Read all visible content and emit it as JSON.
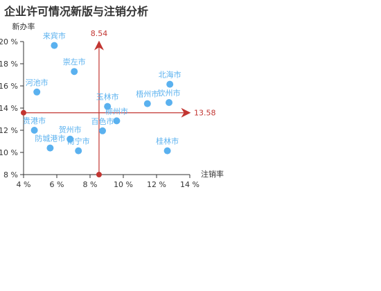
{
  "chart_data": {
    "type": "scatter",
    "title": "企业许可情况新版与注销分析",
    "xlabel": "注销率",
    "ylabel": "新办率",
    "xlim": [
      4,
      14
    ],
    "ylim": [
      8,
      20
    ],
    "x_ticks": [
      4,
      6,
      8,
      10,
      12,
      14
    ],
    "y_ticks": [
      8,
      10,
      12,
      14,
      16,
      18,
      20
    ],
    "x_tick_labels": [
      "4 %",
      "6 %",
      "8 %",
      "10 %",
      "12 %",
      "14 %"
    ],
    "y_tick_labels": [
      "8 %",
      "10 %",
      "12 %",
      "14 %",
      "16 %",
      "18 %",
      "20 %"
    ],
    "grid": false,
    "reference_lines": {
      "x": 8.54,
      "x_label": "8.54",
      "y": 13.58,
      "y_label": "13.58",
      "color": "#c23531"
    },
    "point_color": "#5ab1ef",
    "points": [
      {
        "name": "来宾市",
        "x": 5.85,
        "y": 19.65
      },
      {
        "name": "崇左市",
        "x": 7.05,
        "y": 17.3
      },
      {
        "name": "河池市",
        "x": 4.8,
        "y": 15.45
      },
      {
        "name": "北海市",
        "x": 12.8,
        "y": 16.15
      },
      {
        "name": "玉林市",
        "x": 9.05,
        "y": 14.15
      },
      {
        "name": "梧州市",
        "x": 11.45,
        "y": 14.4
      },
      {
        "name": "钦州市",
        "x": 12.75,
        "y": 14.5
      },
      {
        "name": "柳州市",
        "x": 9.6,
        "y": 12.85
      },
      {
        "name": "贵港市",
        "x": 4.65,
        "y": 12.0
      },
      {
        "name": "贺州市",
        "x": 6.8,
        "y": 11.2
      },
      {
        "name": "百色市",
        "x": 8.75,
        "y": 11.95
      },
      {
        "name": "防城港市",
        "x": 5.6,
        "y": 10.4
      },
      {
        "name": "南宁市",
        "x": 7.3,
        "y": 10.15
      },
      {
        "name": "桂林市",
        "x": 12.65,
        "y": 10.15
      }
    ]
  }
}
